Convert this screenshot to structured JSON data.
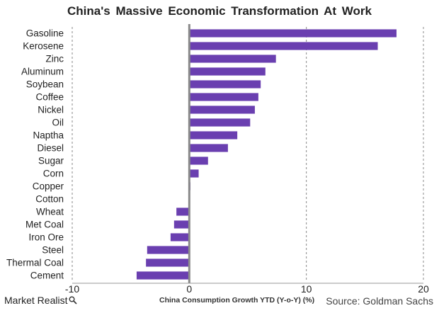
{
  "chart_data": {
    "type": "bar",
    "orientation": "horizontal",
    "title": "China's Massive Economic Transformation At Work",
    "xlabel": "China Consumption Growth YTD (Y-o-Y) (%)",
    "ylabel": "",
    "xlim": [
      -10,
      20
    ],
    "xticks": [
      -10,
      0,
      10,
      20
    ],
    "grid": "vertical dashed",
    "bar_color": "#6a3fb0",
    "categories": [
      "Gasoline",
      "Kerosene",
      "Zinc",
      "Aluminum",
      "Soybean",
      "Coffee",
      "Nickel",
      "Oil",
      "Naptha",
      "Diesel",
      "Sugar",
      "Corn",
      "Copper",
      "Cotton",
      "Wheat",
      "Met Coal",
      "Iron Ore",
      "Steel",
      "Thermal Coal",
      "Cement"
    ],
    "values": [
      17.7,
      16.1,
      7.4,
      6.5,
      6.1,
      5.9,
      5.6,
      5.2,
      4.1,
      3.3,
      1.6,
      0.8,
      0.1,
      0.0,
      -1.1,
      -1.3,
      -1.6,
      -3.6,
      -3.7,
      -4.5
    ]
  },
  "footer": {
    "brand": "Market Realist",
    "brand_icon": "magnifier-icon",
    "source": "Source: Goldman Sachs"
  }
}
